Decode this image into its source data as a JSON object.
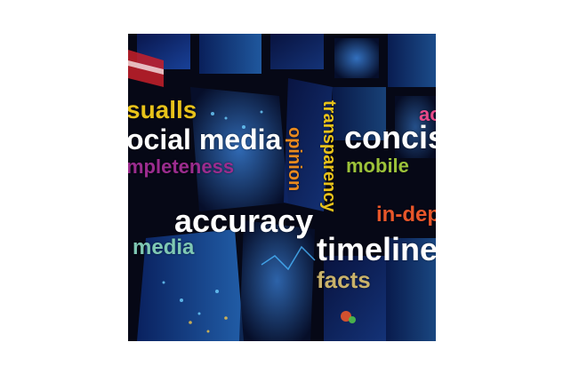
{
  "words": {
    "visuals": "sualls",
    "social_media": "ocial media",
    "completeness": "mpleteness",
    "opinion": "opinion",
    "transparency": "transparency",
    "concise": "concis",
    "ac": "ac",
    "mobile": "mobile",
    "accuracy": "accuracy",
    "in_depth": "in-dep",
    "media": "media",
    "timelines": "timelines",
    "facts": "facts"
  },
  "colors": {
    "yellow": "#e8c21a",
    "white": "#ffffff",
    "purple": "#9b2c8e",
    "orange": "#e98a1e",
    "lime": "#9cc23a",
    "pink": "#e84a8a",
    "red_orange": "#e8562a",
    "teal": "#7fc8b4",
    "khaki": "#c9b26a",
    "background": "#060816"
  }
}
